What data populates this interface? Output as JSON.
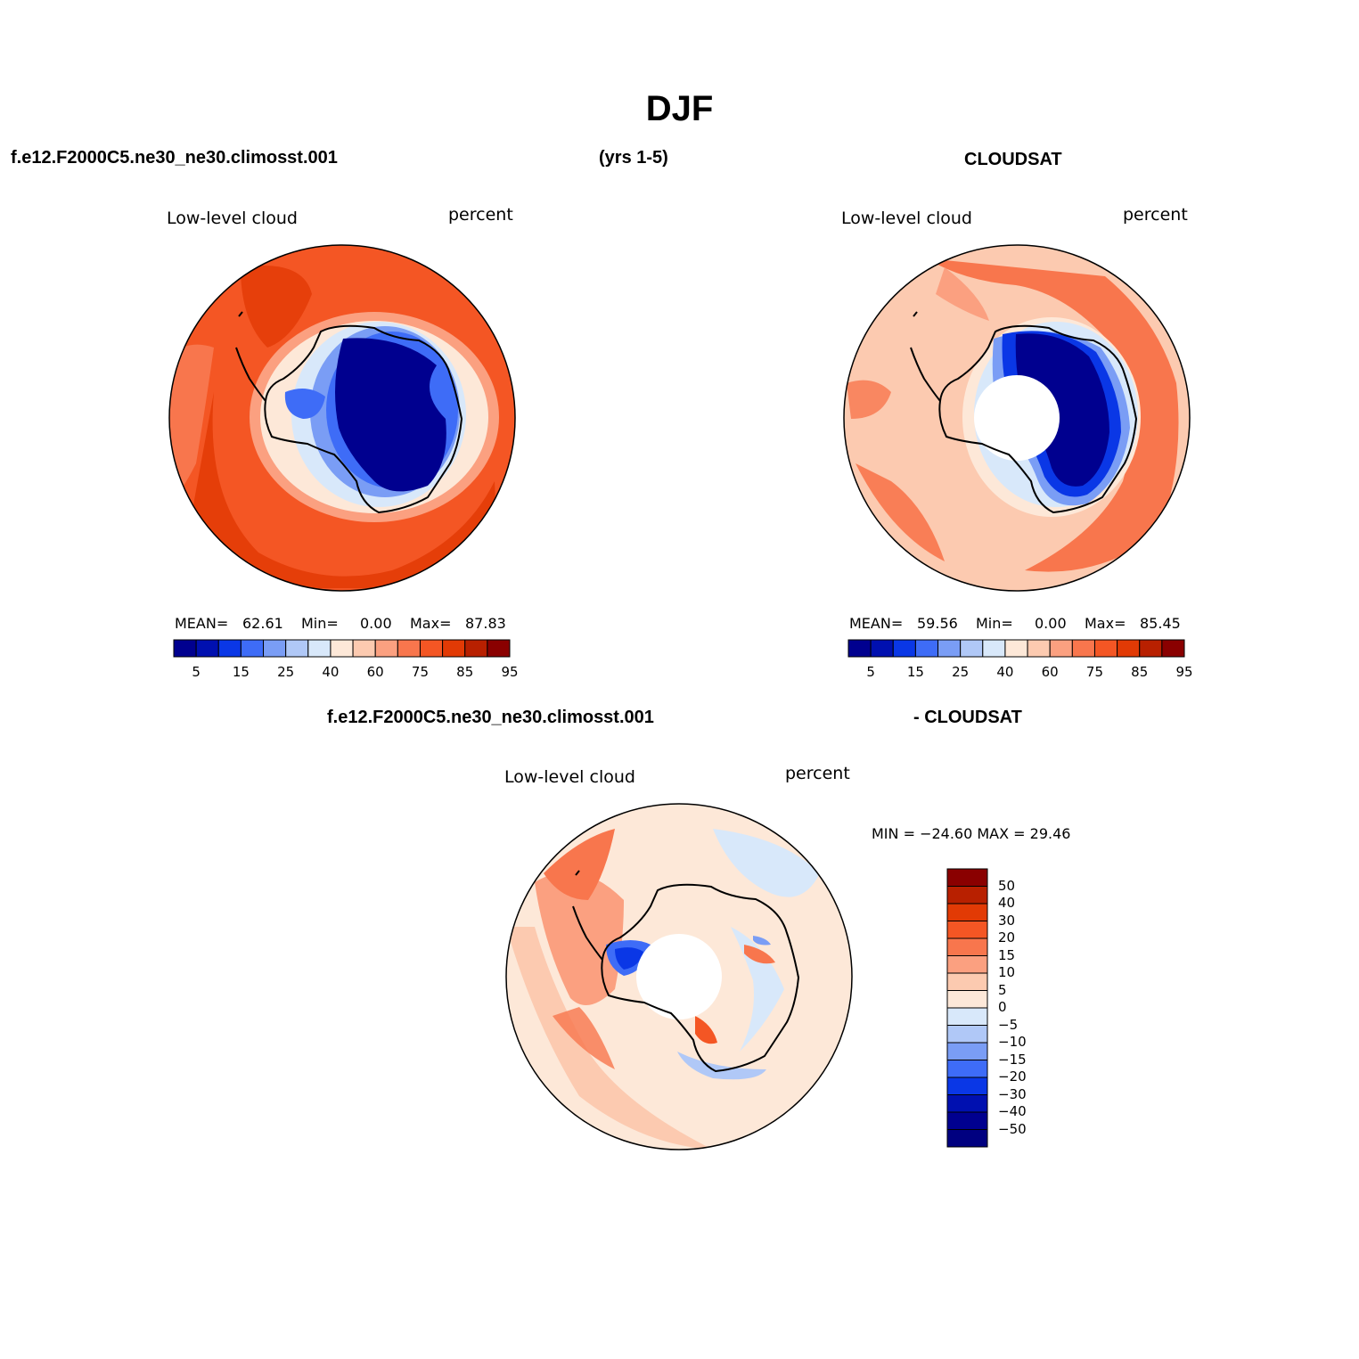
{
  "header": {
    "title": "DJF",
    "model_name": "f.e12.F2000C5.ne30_ne30.climosst.001",
    "years": "(yrs 1-5)",
    "obs_name": "CLOUDSAT"
  },
  "panels": [
    {
      "variable": "Low-level cloud",
      "unit": "percent",
      "mean_label": "MEAN=",
      "mean": "62.61",
      "min_label": "Min=",
      "min": "0.00",
      "max_label": "Max=",
      "max": "87.83"
    },
    {
      "variable": "Low-level cloud",
      "unit": "percent",
      "mean_label": "MEAN=",
      "mean": "59.56",
      "min_label": "Min=",
      "min": "0.00",
      "max_label": "Max=",
      "max": "85.45"
    }
  ],
  "difference": {
    "title_left": "f.e12.F2000C5.ne30_ne30.climosst.001",
    "title_right": "- CLOUDSAT",
    "variable": "Low-level cloud",
    "unit": "percent",
    "minmax_text": "MIN = −24.60 MAX =  29.46"
  },
  "colorbars": {
    "abs_labels": [
      "5",
      "15",
      "25",
      "40",
      "60",
      "75",
      "85",
      "95"
    ],
    "diff_labels": [
      "50",
      "40",
      "30",
      "20",
      "15",
      "10",
      "5",
      "0",
      "−5",
      "−10",
      "−15",
      "−20",
      "−30",
      "−40",
      "−50"
    ],
    "abs_colors": [
      "#00008f",
      "#0010b0",
      "#0a37e6",
      "#3e6cf7",
      "#7a9df5",
      "#b0c8f7",
      "#d8e8fa",
      "#fde8d8",
      "#fccab0",
      "#fba080",
      "#f8764d",
      "#f45624",
      "#e23a05",
      "#b82000",
      "#8a0000"
    ],
    "diff_colors": [
      "#8a0000",
      "#b82000",
      "#e23a05",
      "#f45624",
      "#f8764d",
      "#fba080",
      "#fccab0",
      "#fde8d8",
      "#d8e8fa",
      "#b0c8f7",
      "#7a9df5",
      "#3e6cf7",
      "#0a37e6",
      "#0010b0",
      "#00008f",
      "#000080"
    ]
  }
}
